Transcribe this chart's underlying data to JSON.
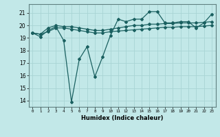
{
  "xlabel": "Humidex (Indice chaleur)",
  "bg_color": "#c2e8e8",
  "grid_color": "#a8d4d4",
  "line_color": "#1a6060",
  "xlim": [
    -0.5,
    23.5
  ],
  "ylim": [
    13.5,
    21.7
  ],
  "xticks": [
    0,
    1,
    2,
    3,
    4,
    5,
    6,
    7,
    8,
    9,
    10,
    11,
    12,
    13,
    14,
    15,
    16,
    17,
    18,
    19,
    20,
    21,
    22,
    23
  ],
  "yticks": [
    14,
    15,
    16,
    17,
    18,
    19,
    20,
    21
  ],
  "line1_x": [
    0,
    1,
    2,
    3,
    4,
    5,
    6,
    7,
    8,
    9,
    10,
    11,
    12,
    13,
    14,
    15,
    16,
    17,
    18,
    19,
    20,
    21,
    22,
    23
  ],
  "line1_y": [
    19.4,
    19.1,
    19.6,
    19.9,
    18.8,
    13.9,
    17.3,
    18.3,
    15.9,
    17.5,
    19.2,
    20.5,
    20.3,
    20.5,
    20.5,
    21.1,
    21.1,
    20.2,
    20.2,
    20.3,
    20.3,
    19.8,
    20.2,
    20.9
  ],
  "line2_x": [
    0,
    1,
    2,
    3,
    4,
    5,
    6,
    7,
    8,
    9,
    10,
    11,
    12,
    13,
    14,
    15,
    16,
    17,
    18,
    19,
    20,
    21,
    22,
    23
  ],
  "line2_y": [
    19.4,
    19.3,
    19.8,
    20.0,
    19.9,
    19.9,
    19.8,
    19.7,
    19.6,
    19.6,
    19.7,
    19.8,
    19.9,
    20.0,
    20.0,
    20.1,
    20.1,
    20.15,
    20.15,
    20.2,
    20.2,
    20.2,
    20.25,
    20.3
  ],
  "line3_x": [
    0,
    1,
    2,
    3,
    4,
    5,
    6,
    7,
    8,
    9,
    10,
    11,
    12,
    13,
    14,
    15,
    16,
    17,
    18,
    19,
    20,
    21,
    22,
    23
  ],
  "line3_y": [
    19.4,
    19.3,
    19.5,
    19.8,
    19.8,
    19.7,
    19.6,
    19.5,
    19.4,
    19.4,
    19.5,
    19.55,
    19.6,
    19.65,
    19.7,
    19.75,
    19.8,
    19.85,
    19.85,
    19.9,
    19.9,
    19.9,
    19.95,
    20.0
  ],
  "markersize": 2.0,
  "linewidth": 0.9
}
